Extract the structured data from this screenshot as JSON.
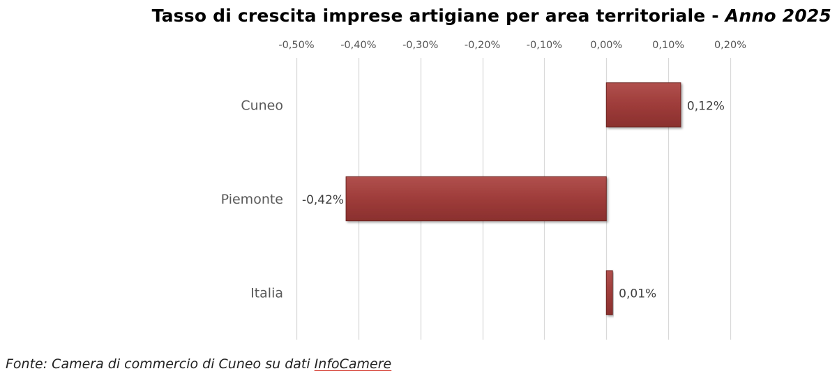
{
  "chart_data": {
    "type": "bar",
    "orientation": "horizontal",
    "title": "Tasso di crescita imprese artigiane per area territoriale",
    "title_suffix": "Anno 2025",
    "categories": [
      "Cuneo",
      "Piemonte",
      "Italia"
    ],
    "values": [
      0.12,
      -0.42,
      0.01
    ],
    "value_labels": [
      "0,12%",
      "-0,42%",
      "0,01%"
    ],
    "xlim": [
      -0.5,
      0.2
    ],
    "x_ticks": [
      -0.5,
      -0.4,
      -0.3,
      -0.2,
      -0.1,
      0.0,
      0.1,
      0.2
    ],
    "x_tick_labels": [
      "-0,50%",
      "-0,40%",
      "-0,30%",
      "-0,20%",
      "-0,10%",
      "0,00%",
      "0,10%",
      "0,20%"
    ],
    "x_axis_position": "top",
    "grid": true,
    "bar_color": "#9e3c3a",
    "legend": "none"
  },
  "source": {
    "prefix": "Fonte: Camera di commercio di Cuneo su dati ",
    "link_text": "InfoCamere"
  }
}
